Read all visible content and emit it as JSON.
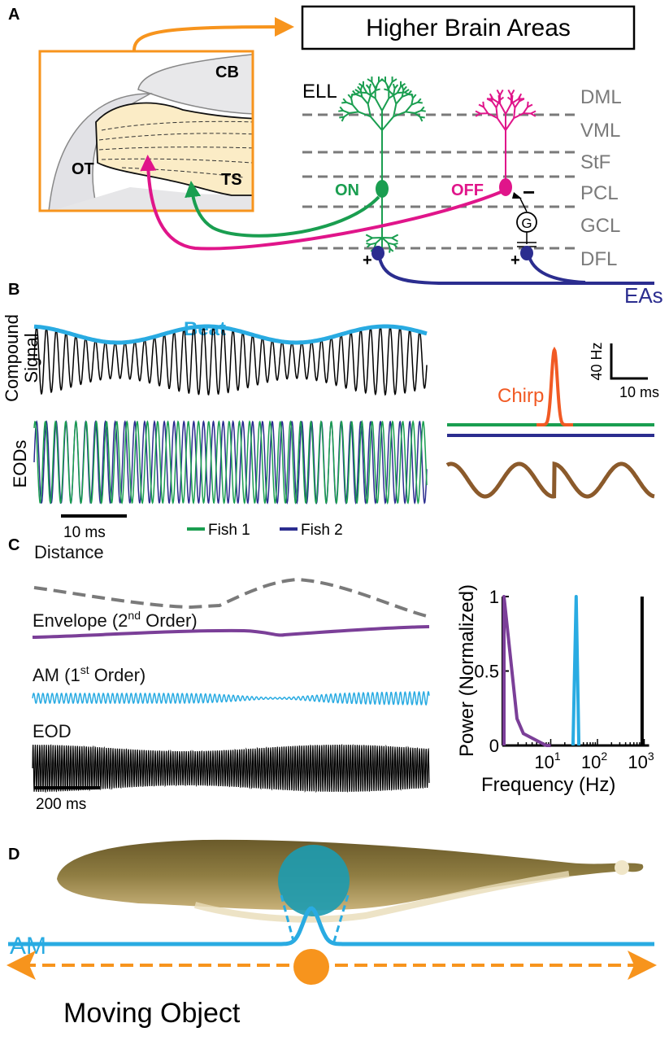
{
  "panels": {
    "a": "A",
    "b": "B",
    "c": "C",
    "d": "D"
  },
  "panel_a": {
    "higher_areas": "Higher Brain Areas",
    "regions": {
      "cb": "CB",
      "ot": "OT",
      "ts": "TS"
    },
    "ell": "ELL",
    "layers": [
      "DML",
      "VML",
      "StF",
      "PCL",
      "GCL",
      "DFL"
    ],
    "on": "ON",
    "off": "OFF",
    "g": "G",
    "minus": "−",
    "plus": "+",
    "eas": "EAs"
  },
  "panel_b": {
    "beat": "Beat",
    "compound_line1": "Compound",
    "compound_line2": "Signal",
    "eods": "EODs",
    "scale": "10 ms",
    "legend": [
      {
        "name": "Fish 1",
        "color": "#1a9e50"
      },
      {
        "name": "Fish 2",
        "color": "#2b2d8f"
      }
    ],
    "chirp": "Chirp",
    "chirp_scale_y": "40 Hz",
    "chirp_scale_x": "10 ms"
  },
  "panel_c": {
    "distance": "Distance",
    "envelope": "Envelope (2",
    "envelope_sup": "nd",
    "envelope_end": " Order)",
    "am": "AM (1",
    "am_sup": "st",
    "am_end": " Order)",
    "eod": "EOD",
    "scale": "200 ms",
    "chart_data": {
      "type": "line",
      "xlabel": "Frequency (Hz)",
      "ylabel": "Power (Normalized)",
      "xscale": "log",
      "xlim": [
        1,
        1000
      ],
      "ylim": [
        0,
        1
      ],
      "xticks": [
        {
          "label": "10",
          "exp": "1"
        },
        {
          "label": "10",
          "exp": "2"
        },
        {
          "label": "10",
          "exp": "3"
        }
      ],
      "yticks": [
        "0",
        "0.5",
        "1"
      ],
      "series": [
        {
          "color": "#7b3f98",
          "x": [
            1,
            1,
            1.9,
            2.6,
            8,
            10
          ],
          "y": [
            0,
            1,
            0.18,
            0.08,
            0,
            0
          ]
        },
        {
          "color": "#29abe2",
          "x": [
            30,
            35,
            40
          ],
          "y": [
            0,
            1,
            0
          ]
        },
        {
          "color": "#000000",
          "x": [
            900,
            900
          ],
          "y": [
            0,
            1
          ]
        }
      ]
    }
  },
  "panel_d": {
    "am": "AM",
    "moving_object": "Moving Object"
  },
  "colors": {
    "orange": "#f7941d",
    "green": "#1a9e50",
    "magenta": "#e0158a",
    "blue": "#2b2d8f",
    "cyan": "#29abe2",
    "purple": "#7b3f98",
    "chirp": "#f15a24",
    "brown": "#8b5a2b",
    "grey": "#7a7a7a"
  }
}
